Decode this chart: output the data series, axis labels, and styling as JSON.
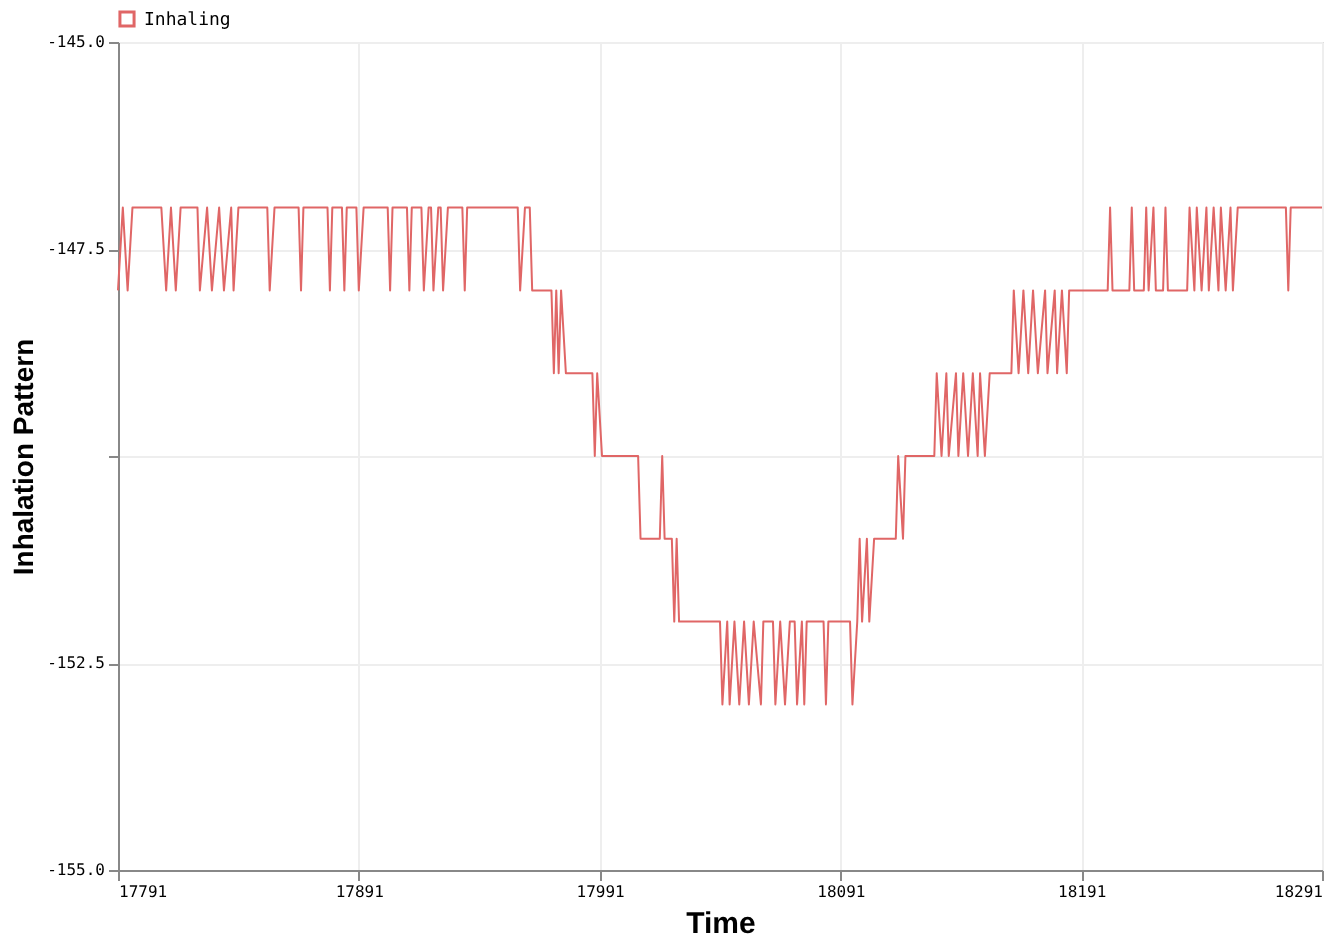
{
  "chart_data": {
    "type": "line",
    "xlabel": "Time",
    "ylabel": "Inhalation Pattern",
    "x": [
      17791,
      17793,
      17795,
      17797,
      17809,
      17811,
      17813,
      17815,
      17817,
      17824,
      17825,
      17828,
      17830,
      17833,
      17835,
      17838,
      17839,
      17841,
      17853,
      17854,
      17856,
      17866,
      17867,
      17868,
      17878,
      17879,
      17880,
      17884,
      17885,
      17886,
      17890,
      17891,
      17893,
      17903,
      17904,
      17905,
      17911,
      17912,
      17913,
      17917,
      17918,
      17920,
      17921,
      17922,
      17924,
      17925,
      17926,
      17928,
      17934,
      17935,
      17936,
      17957,
      17958,
      17960,
      17962,
      17963,
      17971,
      17972,
      17973,
      17974,
      17975,
      17977,
      17988,
      17989,
      17990,
      17992,
      18007,
      18008,
      18016,
      18017,
      18018,
      18021,
      18022,
      18023,
      18024,
      18041,
      18042,
      18044,
      18045,
      18047,
      18049,
      18051,
      18053,
      18055,
      18058,
      18059,
      18063,
      18064,
      18066,
      18068,
      18070,
      18072,
      18073,
      18075,
      18076,
      18077,
      18084,
      18085,
      18086,
      18095,
      18096,
      18098,
      18099,
      18100,
      18102,
      18103,
      18105,
      18114,
      18115,
      18117,
      18118,
      18130,
      18131,
      18133,
      18135,
      18136,
      18139,
      18140,
      18142,
      18144,
      18146,
      18148,
      18149,
      18151,
      18153,
      18162,
      18163,
      18165,
      18167,
      18169,
      18171,
      18173,
      18176,
      18177,
      18180,
      18181,
      18183,
      18185,
      18186,
      18202,
      18203,
      18204,
      18211,
      18212,
      18213,
      18217,
      18218,
      18219,
      18221,
      18222,
      18225,
      18226,
      18227,
      18235,
      18236,
      18238,
      18239,
      18241,
      18243,
      18244,
      18246,
      18248,
      18249,
      18251,
      18253,
      18254,
      18256,
      18276,
      18277,
      18278,
      18291
    ],
    "series": [
      {
        "name": "Inhaling",
        "color": "#e06666",
        "values": [
          -148,
          -147,
          -148,
          -147,
          -147,
          -148,
          -147,
          -148,
          -147,
          -147,
          -148,
          -147,
          -148,
          -147,
          -148,
          -147,
          -148,
          -147,
          -147,
          -148,
          -147,
          -147,
          -148,
          -147,
          -147,
          -148,
          -147,
          -147,
          -148,
          -147,
          -147,
          -148,
          -147,
          -147,
          -148,
          -147,
          -147,
          -148,
          -147,
          -147,
          -148,
          -147,
          -147,
          -148,
          -147,
          -147,
          -148,
          -147,
          -147,
          -148,
          -147,
          -147,
          -148,
          -147,
          -147,
          -148,
          -148,
          -149,
          -148,
          -149,
          -148,
          -149,
          -149,
          -150,
          -149,
          -150,
          -150,
          -151,
          -151,
          -150,
          -151,
          -151,
          -152,
          -151,
          -152,
          -152,
          -153,
          -152,
          -153,
          -152,
          -153,
          -152,
          -153,
          -152,
          -153,
          -152,
          -152,
          -153,
          -152,
          -153,
          -152,
          -152,
          -153,
          -152,
          -153,
          -152,
          -152,
          -153,
          -152,
          -152,
          -153,
          -152,
          -151,
          -152,
          -151,
          -152,
          -151,
          -151,
          -150,
          -151,
          -150,
          -150,
          -149,
          -150,
          -149,
          -150,
          -149,
          -150,
          -149,
          -150,
          -149,
          -150,
          -149,
          -150,
          -149,
          -149,
          -148,
          -149,
          -148,
          -149,
          -148,
          -149,
          -148,
          -149,
          -148,
          -149,
          -148,
          -149,
          -148,
          -148,
          -147,
          -148,
          -148,
          -147,
          -148,
          -148,
          -147,
          -148,
          -147,
          -148,
          -148,
          -147,
          -148,
          -148,
          -147,
          -148,
          -147,
          -148,
          -147,
          -148,
          -147,
          -148,
          -147,
          -148,
          -147,
          -148,
          -147,
          -147,
          -148,
          -147,
          -147
        ]
      }
    ],
    "xlim": [
      17791,
      18291
    ],
    "xticks": [
      17791,
      17891,
      17991,
      18091,
      18191,
      18291
    ],
    "ylim": [
      -155,
      -145
    ],
    "yticks": [
      {
        "value": -155,
        "label": "-155.0"
      },
      {
        "value": -152.5,
        "label": "-152.5"
      },
      {
        "value": -150,
        "label": null
      },
      {
        "value": -147.5,
        "label": "-147.5"
      },
      {
        "value": -145,
        "label": "-145.0"
      }
    ],
    "grid": true,
    "legend": "top left",
    "marker": "none",
    "line_style": "solid"
  }
}
